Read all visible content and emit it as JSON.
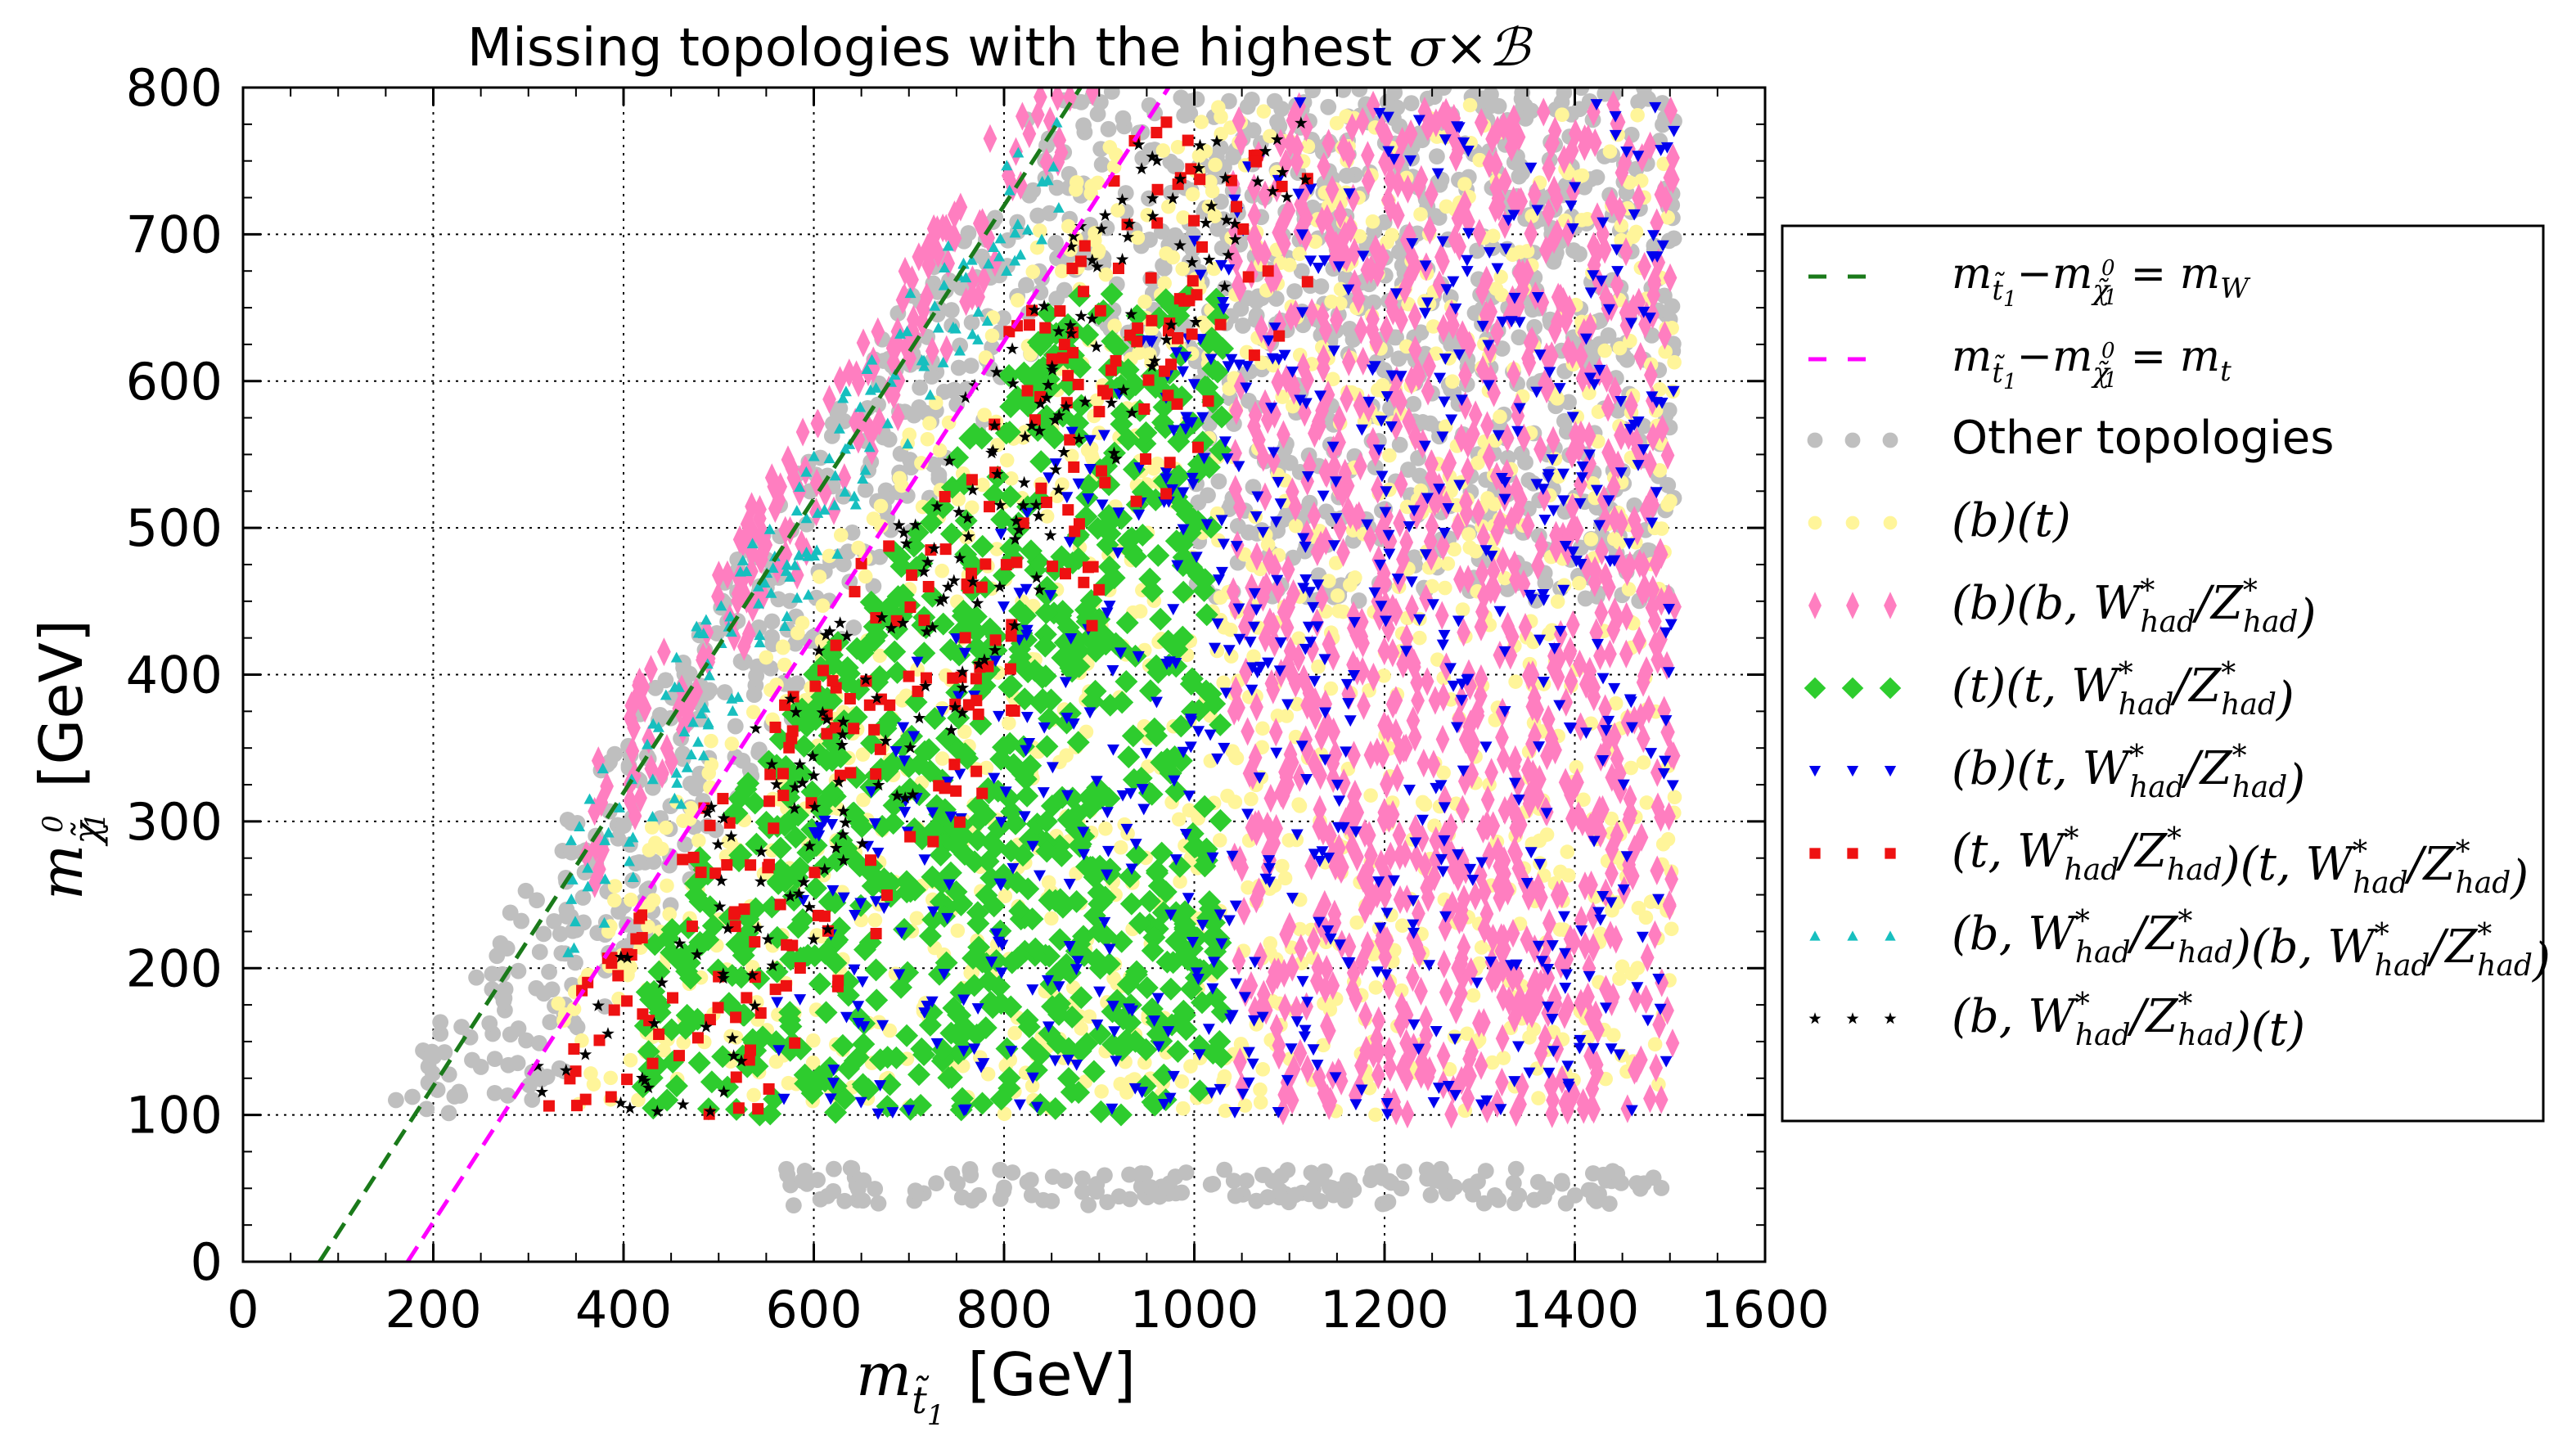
{
  "chart_data": {
    "type": "scatter",
    "title": "Missing topologies with the highest σ×ℬ",
    "title_text": "Missing topologies with the highest ",
    "title_math": "σ×ℬ",
    "xlabel": "m_t̃1 [GeV]",
    "xlabel_var": "m",
    "xlabel_sub": "t̃",
    "xlabel_subsub": "1",
    "xlabel_unit": "[GeV]",
    "ylabel": "m_χ̃0_1 [GeV]",
    "ylabel_var": "m",
    "ylabel_sub": "χ̃",
    "ylabel_sup": "0",
    "ylabel_subsub": "1",
    "ylabel_unit": "[GeV]",
    "xlim": [
      0,
      1600
    ],
    "ylim": [
      0,
      800
    ],
    "x_ticks": [
      0,
      200,
      400,
      600,
      800,
      1000,
      1200,
      1400,
      1600
    ],
    "y_ticks": [
      0,
      100,
      200,
      300,
      400,
      500,
      600,
      700,
      800
    ],
    "grid": true,
    "legend_position": "outside-right",
    "lines": [
      {
        "name": "mW line",
        "label_rhs": "= m",
        "label_rhs_sub": "W",
        "offset": 80.4,
        "color": "#1a7a1a",
        "style": "dashed"
      },
      {
        "name": "mt line",
        "label_rhs": "= m",
        "label_rhs_sub": "t",
        "offset": 173.0,
        "color": "#ff00ff",
        "style": "dashed"
      }
    ],
    "line_label_lhs": "m",
    "series": [
      {
        "name": "Other topologies",
        "marker": "circle",
        "color": "#bfbfbf",
        "region": "other"
      },
      {
        "name": "(b)(t)",
        "marker": "circle",
        "color": "#fff59a",
        "region": "bt"
      },
      {
        "name": "(b)(b, W*had/Z*had)",
        "marker": "thin-diamond",
        "color": "#ff7ec0",
        "region": "bbW"
      },
      {
        "name": "(t)(t, W*had/Z*had)",
        "marker": "diamond",
        "color": "#2ecc2e",
        "region": "ttW"
      },
      {
        "name": "(b)(t, W*had/Z*had)",
        "marker": "triangle-down",
        "color": "#0000ee",
        "region": "btW"
      },
      {
        "name": "(t, W*had/Z*had)(t, W*had/Z*had)",
        "marker": "square",
        "color": "#ee1111",
        "region": "tWtW"
      },
      {
        "name": "(b, W*had/Z*had)(b, W*had/Z*had)",
        "marker": "triangle-up",
        "color": "#17bfbf",
        "region": "bWbW"
      },
      {
        "name": "(b, W*had/Z*had)(t)",
        "marker": "star",
        "color": "#000000",
        "region": "bWt"
      }
    ]
  },
  "legend": {
    "items": [
      {
        "kind": "line-mW"
      },
      {
        "kind": "line-mt"
      },
      {
        "kind": "text",
        "label": "Other topologies"
      },
      {
        "kind": "math",
        "label": "(b)(t)"
      },
      {
        "kind": "math",
        "prefix": "(b)(b, ",
        "suffix": ")"
      },
      {
        "kind": "math",
        "prefix": "(t)(t, ",
        "suffix": ")"
      },
      {
        "kind": "math",
        "prefix": "(b)(t, ",
        "suffix": ")"
      },
      {
        "kind": "math2",
        "prefix": "(t, ",
        "mid": ")(t, ",
        "suffix": ")"
      },
      {
        "kind": "math2",
        "prefix": "(b, ",
        "mid": ")(b, ",
        "suffix": ")"
      },
      {
        "kind": "math",
        "prefix": "(b, ",
        "suffix": ")(t)"
      }
    ],
    "W": "W",
    "Z": "Z",
    "star": "*",
    "had": "had",
    "slash": "/"
  }
}
